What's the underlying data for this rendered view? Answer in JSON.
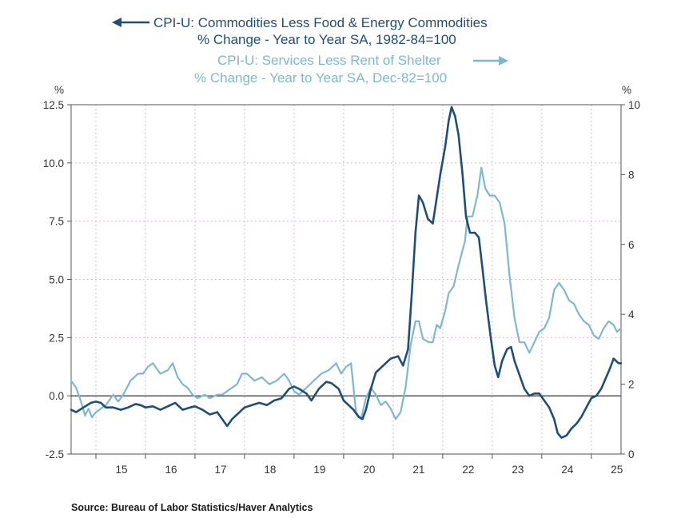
{
  "colors": {
    "dark": "#1f4e79",
    "light": "#7fb7d1",
    "grid": "#d9b8d9",
    "axis": "#555555",
    "zero": "#222222"
  },
  "source": "Source:  Bureau of Labor Statistics/Haver Analytics",
  "chart_data": {
    "type": "line",
    "title_dark_line1": "CPI-U: Commodities Less Food & Energy Commodities",
    "title_dark_line2": "% Change - Year to Year    SA, 1982-84=100",
    "title_light_line1": "CPI-U: Services Less Rent of Shelter",
    "title_light_line2": "% Change - Year to Year    SA, Dec-82=100",
    "left_unit": "%",
    "right_unit": "%",
    "xlim": [
      2014.5,
      2025.6
    ],
    "left_ylim": [
      -2.5,
      12.5
    ],
    "right_ylim": [
      0,
      10
    ],
    "left_ticks": [
      12.5,
      10.0,
      7.5,
      5.0,
      2.5,
      0.0,
      -2.5
    ],
    "left_tick_labels": [
      "12.5",
      "10.0",
      "7.5",
      "5.0",
      "2.5",
      "0.0",
      "-2.5"
    ],
    "right_ticks": [
      10,
      8,
      6,
      4,
      2,
      0
    ],
    "right_tick_labels": [
      "10",
      "8",
      "6",
      "4",
      "2",
      "0"
    ],
    "x_ticks": [
      {
        "pos": 2015.0,
        "label": "15"
      },
      {
        "pos": 2016.0,
        "label": "16"
      },
      {
        "pos": 2017.0,
        "label": "17"
      },
      {
        "pos": 2018.0,
        "label": "18"
      },
      {
        "pos": 2019.0,
        "label": "19"
      },
      {
        "pos": 2020.0,
        "label": "20"
      },
      {
        "pos": 2021.0,
        "label": "21"
      },
      {
        "pos": 2022.0,
        "label": "22"
      },
      {
        "pos": 2023.0,
        "label": "23"
      },
      {
        "pos": 2024.0,
        "label": "24"
      },
      {
        "pos": 2025.0,
        "label": "25"
      }
    ],
    "series": [
      {
        "name": "CPI-U: Commodities Less Food & Energy Commodities (left axis)",
        "axis": "left",
        "points": [
          [
            2014.5,
            -0.6
          ],
          [
            2014.6,
            -0.7
          ],
          [
            2014.75,
            -0.5
          ],
          [
            2014.9,
            -0.3
          ],
          [
            2015.0,
            -0.25
          ],
          [
            2015.1,
            -0.3
          ],
          [
            2015.2,
            -0.5
          ],
          [
            2015.35,
            -0.5
          ],
          [
            2015.5,
            -0.6
          ],
          [
            2015.65,
            -0.5
          ],
          [
            2015.8,
            -0.35
          ],
          [
            2015.9,
            -0.4
          ],
          [
            2016.0,
            -0.5
          ],
          [
            2016.15,
            -0.45
          ],
          [
            2016.3,
            -0.6
          ],
          [
            2016.45,
            -0.45
          ],
          [
            2016.6,
            -0.3
          ],
          [
            2016.75,
            -0.6
          ],
          [
            2016.9,
            -0.5
          ],
          [
            2017.0,
            -0.45
          ],
          [
            2017.15,
            -0.6
          ],
          [
            2017.3,
            -0.8
          ],
          [
            2017.45,
            -0.7
          ],
          [
            2017.55,
            -1.0
          ],
          [
            2017.65,
            -1.3
          ],
          [
            2017.75,
            -1.0
          ],
          [
            2017.9,
            -0.7
          ],
          [
            2018.0,
            -0.5
          ],
          [
            2018.15,
            -0.4
          ],
          [
            2018.3,
            -0.3
          ],
          [
            2018.45,
            -0.4
          ],
          [
            2018.6,
            -0.2
          ],
          [
            2018.75,
            -0.1
          ],
          [
            2018.9,
            0.3
          ],
          [
            2019.0,
            0.4
          ],
          [
            2019.1,
            0.3
          ],
          [
            2019.25,
            0.1
          ],
          [
            2019.35,
            -0.2
          ],
          [
            2019.5,
            0.3
          ],
          [
            2019.65,
            0.6
          ],
          [
            2019.75,
            0.55
          ],
          [
            2019.9,
            0.3
          ],
          [
            2020.0,
            -0.2
          ],
          [
            2020.1,
            -0.4
          ],
          [
            2020.2,
            -0.6
          ],
          [
            2020.3,
            -0.9
          ],
          [
            2020.38,
            -1.0
          ],
          [
            2020.45,
            -0.6
          ],
          [
            2020.55,
            0.3
          ],
          [
            2020.65,
            1.0
          ],
          [
            2020.8,
            1.3
          ],
          [
            2020.95,
            1.6
          ],
          [
            2021.1,
            1.7
          ],
          [
            2021.2,
            1.3
          ],
          [
            2021.3,
            2.0
          ],
          [
            2021.38,
            4.5
          ],
          [
            2021.45,
            7.0
          ],
          [
            2021.52,
            8.6
          ],
          [
            2021.6,
            8.3
          ],
          [
            2021.7,
            7.6
          ],
          [
            2021.8,
            7.4
          ],
          [
            2021.88,
            8.5
          ],
          [
            2021.95,
            9.5
          ],
          [
            2022.05,
            10.7
          ],
          [
            2022.12,
            11.8
          ],
          [
            2022.18,
            12.4
          ],
          [
            2022.25,
            12.0
          ],
          [
            2022.32,
            11.2
          ],
          [
            2022.4,
            9.5
          ],
          [
            2022.47,
            7.7
          ],
          [
            2022.55,
            7.0
          ],
          [
            2022.65,
            7.0
          ],
          [
            2022.73,
            6.8
          ],
          [
            2022.8,
            5.5
          ],
          [
            2022.88,
            4.0
          ],
          [
            2022.97,
            2.5
          ],
          [
            2023.05,
            1.3
          ],
          [
            2023.12,
            0.8
          ],
          [
            2023.2,
            1.5
          ],
          [
            2023.3,
            2.0
          ],
          [
            2023.38,
            2.1
          ],
          [
            2023.45,
            1.5
          ],
          [
            2023.55,
            0.9
          ],
          [
            2023.65,
            0.3
          ],
          [
            2023.75,
            0.0
          ],
          [
            2023.85,
            0.1
          ],
          [
            2023.95,
            0.1
          ],
          [
            2024.05,
            -0.2
          ],
          [
            2024.15,
            -0.5
          ],
          [
            2024.25,
            -1.0
          ],
          [
            2024.32,
            -1.6
          ],
          [
            2024.4,
            -1.8
          ],
          [
            2024.5,
            -1.7
          ],
          [
            2024.6,
            -1.4
          ],
          [
            2024.7,
            -1.2
          ],
          [
            2024.8,
            -0.9
          ],
          [
            2024.9,
            -0.5
          ],
          [
            2025.0,
            -0.1
          ],
          [
            2025.1,
            0.0
          ],
          [
            2025.2,
            0.3
          ],
          [
            2025.3,
            0.8
          ],
          [
            2025.38,
            1.2
          ],
          [
            2025.45,
            1.6
          ],
          [
            2025.55,
            1.4
          ],
          [
            2025.6,
            1.4
          ]
        ]
      },
      {
        "name": "CPI-U: Services Less Rent of Shelter (right axis)",
        "axis": "right",
        "points": [
          [
            2014.5,
            2.1
          ],
          [
            2014.6,
            1.9
          ],
          [
            2014.7,
            1.5
          ],
          [
            2014.78,
            1.1
          ],
          [
            2014.85,
            1.3
          ],
          [
            2014.92,
            1.05
          ],
          [
            2015.0,
            1.2
          ],
          [
            2015.1,
            1.3
          ],
          [
            2015.2,
            1.4
          ],
          [
            2015.35,
            1.7
          ],
          [
            2015.45,
            1.5
          ],
          [
            2015.55,
            1.7
          ],
          [
            2015.7,
            2.1
          ],
          [
            2015.85,
            2.3
          ],
          [
            2015.95,
            2.3
          ],
          [
            2016.05,
            2.5
          ],
          [
            2016.15,
            2.6
          ],
          [
            2016.3,
            2.3
          ],
          [
            2016.45,
            2.4
          ],
          [
            2016.55,
            2.6
          ],
          [
            2016.65,
            2.2
          ],
          [
            2016.75,
            2.0
          ],
          [
            2016.85,
            1.9
          ],
          [
            2016.95,
            1.7
          ],
          [
            2017.05,
            1.6
          ],
          [
            2017.2,
            1.7
          ],
          [
            2017.3,
            1.6
          ],
          [
            2017.45,
            1.7
          ],
          [
            2017.55,
            1.7
          ],
          [
            2017.65,
            1.8
          ],
          [
            2017.75,
            1.9
          ],
          [
            2017.85,
            2.0
          ],
          [
            2017.95,
            2.3
          ],
          [
            2018.05,
            2.3
          ],
          [
            2018.2,
            2.1
          ],
          [
            2018.35,
            2.2
          ],
          [
            2018.5,
            2.0
          ],
          [
            2018.65,
            2.1
          ],
          [
            2018.8,
            2.3
          ],
          [
            2018.9,
            2.1
          ],
          [
            2019.0,
            1.8
          ],
          [
            2019.1,
            1.7
          ],
          [
            2019.25,
            1.9
          ],
          [
            2019.4,
            2.1
          ],
          [
            2019.55,
            2.3
          ],
          [
            2019.7,
            2.4
          ],
          [
            2019.85,
            2.6
          ],
          [
            2019.95,
            2.3
          ],
          [
            2020.05,
            2.5
          ],
          [
            2020.15,
            2.6
          ],
          [
            2020.25,
            1.2
          ],
          [
            2020.35,
            1.0
          ],
          [
            2020.45,
            1.6
          ],
          [
            2020.55,
            1.9
          ],
          [
            2020.65,
            1.7
          ],
          [
            2020.75,
            1.4
          ],
          [
            2020.85,
            1.5
          ],
          [
            2020.95,
            1.3
          ],
          [
            2021.05,
            1.0
          ],
          [
            2021.15,
            1.2
          ],
          [
            2021.25,
            1.9
          ],
          [
            2021.35,
            3.1
          ],
          [
            2021.45,
            3.8
          ],
          [
            2021.52,
            3.8
          ],
          [
            2021.6,
            3.3
          ],
          [
            2021.72,
            3.2
          ],
          [
            2021.8,
            3.2
          ],
          [
            2021.88,
            3.7
          ],
          [
            2021.95,
            3.6
          ],
          [
            2022.05,
            4.1
          ],
          [
            2022.12,
            4.6
          ],
          [
            2022.22,
            4.8
          ],
          [
            2022.32,
            5.4
          ],
          [
            2022.45,
            6.1
          ],
          [
            2022.5,
            6.8
          ],
          [
            2022.6,
            6.8
          ],
          [
            2022.7,
            7.4
          ],
          [
            2022.78,
            8.2
          ],
          [
            2022.86,
            7.6
          ],
          [
            2022.95,
            7.4
          ],
          [
            2023.05,
            7.4
          ],
          [
            2023.15,
            7.2
          ],
          [
            2023.25,
            6.6
          ],
          [
            2023.35,
            5.1
          ],
          [
            2023.45,
            3.9
          ],
          [
            2023.55,
            3.2
          ],
          [
            2023.65,
            3.2
          ],
          [
            2023.75,
            2.9
          ],
          [
            2023.85,
            3.2
          ],
          [
            2023.95,
            3.5
          ],
          [
            2024.05,
            3.6
          ],
          [
            2024.15,
            3.9
          ],
          [
            2024.25,
            4.7
          ],
          [
            2024.35,
            4.9
          ],
          [
            2024.45,
            4.7
          ],
          [
            2024.55,
            4.4
          ],
          [
            2024.65,
            4.3
          ],
          [
            2024.75,
            4.0
          ],
          [
            2024.85,
            3.8
          ],
          [
            2024.95,
            3.7
          ],
          [
            2025.05,
            3.4
          ],
          [
            2025.15,
            3.3
          ],
          [
            2025.25,
            3.6
          ],
          [
            2025.35,
            3.8
          ],
          [
            2025.45,
            3.7
          ],
          [
            2025.52,
            3.5
          ],
          [
            2025.6,
            3.6
          ]
        ]
      }
    ]
  }
}
